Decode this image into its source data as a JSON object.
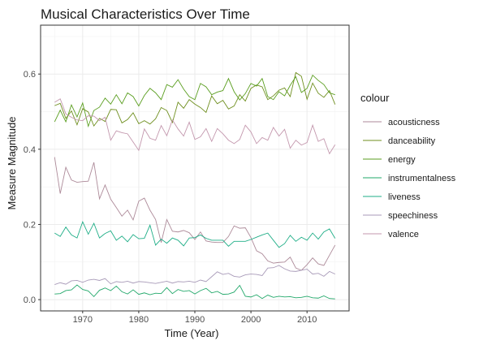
{
  "chart_data": {
    "type": "line",
    "title": "Musical Characteristics Over Time",
    "xlabel": "Time (Year)",
    "ylabel": "Measure Magnitude",
    "xlim": [
      1962.5,
      2017.5
    ],
    "ylim": [
      -0.03,
      0.73
    ],
    "x_ticks": [
      1970,
      1980,
      1990,
      2000,
      2010
    ],
    "y_ticks": [
      0.0,
      0.2,
      0.4,
      0.6
    ],
    "x_tick_labels": [
      "1970",
      "1980",
      "1990",
      "2000",
      "2010"
    ],
    "y_tick_labels": [
      "0.0",
      "0.2",
      "0.4",
      "0.6"
    ],
    "grid": true,
    "legend_position": "right",
    "legend_title": "colour",
    "x": [
      1965,
      1966,
      1967,
      1968,
      1969,
      1970,
      1971,
      1972,
      1973,
      1974,
      1975,
      1976,
      1977,
      1978,
      1979,
      1980,
      1981,
      1982,
      1983,
      1984,
      1985,
      1986,
      1987,
      1988,
      1989,
      1990,
      1991,
      1992,
      1993,
      1994,
      1995,
      1996,
      1997,
      1998,
      1999,
      2000,
      2001,
      2002,
      2003,
      2004,
      2005,
      2006,
      2007,
      2008,
      2009,
      2010,
      2011,
      2012,
      2013,
      2014,
      2015
    ],
    "series": [
      {
        "name": "acousticness",
        "color": "#ad8a99",
        "values": [
          0.379,
          0.282,
          0.352,
          0.318,
          0.312,
          0.314,
          0.315,
          0.365,
          0.268,
          0.305,
          0.267,
          0.245,
          0.222,
          0.238,
          0.212,
          0.262,
          0.27,
          0.238,
          0.213,
          0.152,
          0.213,
          0.182,
          0.18,
          0.184,
          0.178,
          0.16,
          0.18,
          0.156,
          0.153,
          0.152,
          0.152,
          0.168,
          0.196,
          0.19,
          0.191,
          0.165,
          0.13,
          0.122,
          0.103,
          0.097,
          0.099,
          0.1,
          0.113,
          0.084,
          0.078,
          0.093,
          0.111,
          0.095,
          0.091,
          0.118,
          0.145
        ]
      },
      {
        "name": "danceability",
        "color": "#6f8f1f",
        "values": [
          0.516,
          0.522,
          0.482,
          0.502,
          0.465,
          0.508,
          0.499,
          0.462,
          0.482,
          0.474,
          0.506,
          0.505,
          0.47,
          0.479,
          0.497,
          0.468,
          0.476,
          0.467,
          0.481,
          0.511,
          0.503,
          0.471,
          0.525,
          0.509,
          0.532,
          0.52,
          0.511,
          0.498,
          0.542,
          0.521,
          0.53,
          0.507,
          0.515,
          0.545,
          0.528,
          0.562,
          0.571,
          0.566,
          0.532,
          0.542,
          0.557,
          0.563,
          0.54,
          0.604,
          0.594,
          0.533,
          0.576,
          0.549,
          0.538,
          0.556,
          0.519
        ]
      },
      {
        "name": "energy",
        "color": "#5a9e1f",
        "values": [
          0.473,
          0.504,
          0.473,
          0.518,
          0.486,
          0.523,
          0.461,
          0.503,
          0.512,
          0.536,
          0.52,
          0.545,
          0.521,
          0.55,
          0.54,
          0.515,
          0.543,
          0.562,
          0.55,
          0.532,
          0.572,
          0.565,
          0.585,
          0.56,
          0.54,
          0.532,
          0.575,
          0.566,
          0.545,
          0.552,
          0.556,
          0.588,
          0.553,
          0.531,
          0.548,
          0.575,
          0.568,
          0.588,
          0.54,
          0.532,
          0.553,
          0.542,
          0.57,
          0.593,
          0.551,
          0.562,
          0.597,
          0.583,
          0.572,
          0.55,
          0.545
        ]
      },
      {
        "name": "instrumentalness",
        "color": "#22a86a",
        "values": [
          0.015,
          0.016,
          0.024,
          0.026,
          0.039,
          0.027,
          0.023,
          0.008,
          0.025,
          0.031,
          0.024,
          0.036,
          0.021,
          0.015,
          0.026,
          0.014,
          0.018,
          0.013,
          0.017,
          0.016,
          0.032,
          0.016,
          0.027,
          0.022,
          0.024,
          0.015,
          0.024,
          0.03,
          0.018,
          0.022,
          0.014,
          0.015,
          0.02,
          0.038,
          0.009,
          0.007,
          0.013,
          0.003,
          0.012,
          0.006,
          0.009,
          0.007,
          0.008,
          0.005,
          0.006,
          0.009,
          0.005,
          0.004,
          0.01,
          0.003,
          0.002
        ]
      },
      {
        "name": "liveness",
        "color": "#1fae87",
        "values": [
          0.177,
          0.168,
          0.193,
          0.172,
          0.164,
          0.207,
          0.174,
          0.203,
          0.164,
          0.176,
          0.183,
          0.158,
          0.169,
          0.154,
          0.173,
          0.162,
          0.163,
          0.198,
          0.145,
          0.161,
          0.15,
          0.164,
          0.158,
          0.143,
          0.164,
          0.165,
          0.172,
          0.163,
          0.158,
          0.158,
          0.158,
          0.142,
          0.155,
          0.155,
          0.155,
          0.16,
          0.166,
          0.172,
          0.177,
          0.158,
          0.139,
          0.149,
          0.171,
          0.155,
          0.166,
          0.158,
          0.177,
          0.161,
          0.18,
          0.188,
          0.163
        ]
      },
      {
        "name": "speechiness",
        "color": "#a89ab8",
        "values": [
          0.04,
          0.045,
          0.041,
          0.05,
          0.051,
          0.046,
          0.052,
          0.054,
          0.051,
          0.056,
          0.042,
          0.048,
          0.046,
          0.049,
          0.044,
          0.048,
          0.047,
          0.045,
          0.043,
          0.046,
          0.049,
          0.044,
          0.048,
          0.047,
          0.049,
          0.046,
          0.052,
          0.048,
          0.061,
          0.074,
          0.067,
          0.07,
          0.062,
          0.06,
          0.066,
          0.068,
          0.067,
          0.064,
          0.084,
          0.085,
          0.091,
          0.082,
          0.076,
          0.075,
          0.078,
          0.081,
          0.068,
          0.07,
          0.062,
          0.075,
          0.068
        ]
      },
      {
        "name": "valence",
        "color": "#c397ad",
        "values": [
          0.525,
          0.534,
          0.494,
          0.485,
          0.478,
          0.476,
          0.489,
          0.488,
          0.476,
          0.485,
          0.424,
          0.449,
          0.444,
          0.441,
          0.419,
          0.397,
          0.454,
          0.429,
          0.424,
          0.463,
          0.436,
          0.478,
          0.454,
          0.435,
          0.472,
          0.426,
          0.433,
          0.455,
          0.421,
          0.455,
          0.441,
          0.424,
          0.415,
          0.426,
          0.464,
          0.446,
          0.415,
          0.431,
          0.424,
          0.458,
          0.435,
          0.453,
          0.403,
          0.424,
          0.411,
          0.418,
          0.464,
          0.421,
          0.428,
          0.388,
          0.412
        ]
      }
    ]
  }
}
